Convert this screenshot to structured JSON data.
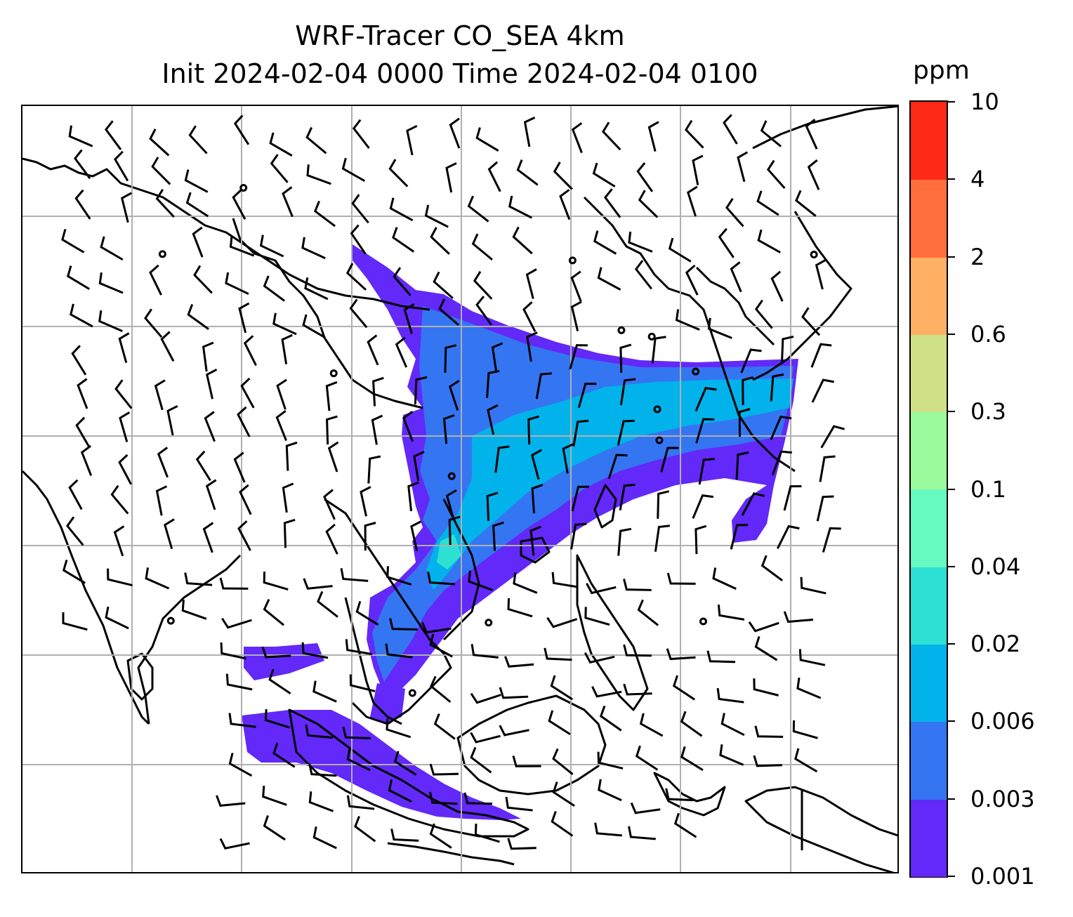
{
  "title": {
    "line1": "WRF-Tracer CO_SEA 4km",
    "line2": "Init 2024-02-04 0000 Time 2024-02-04 0100"
  },
  "colorbar": {
    "unit": "ppm",
    "levels": [
      "0.001",
      "0.003",
      "0.006",
      "0.02",
      "0.04",
      "0.1",
      "0.3",
      "0.6",
      "2",
      "4",
      "10"
    ],
    "colors": [
      "#6229f8",
      "#3475f2",
      "#02b2ea",
      "#2de0d4",
      "#67fac0",
      "#99fa9b",
      "#cfe187",
      "#ffb063",
      "#ff6e3b",
      "#ff2917"
    ]
  },
  "map": {
    "gridlines": true,
    "field": "CO tracer concentration",
    "overlays": [
      "coastlines",
      "country borders",
      "wind barbs"
    ]
  }
}
